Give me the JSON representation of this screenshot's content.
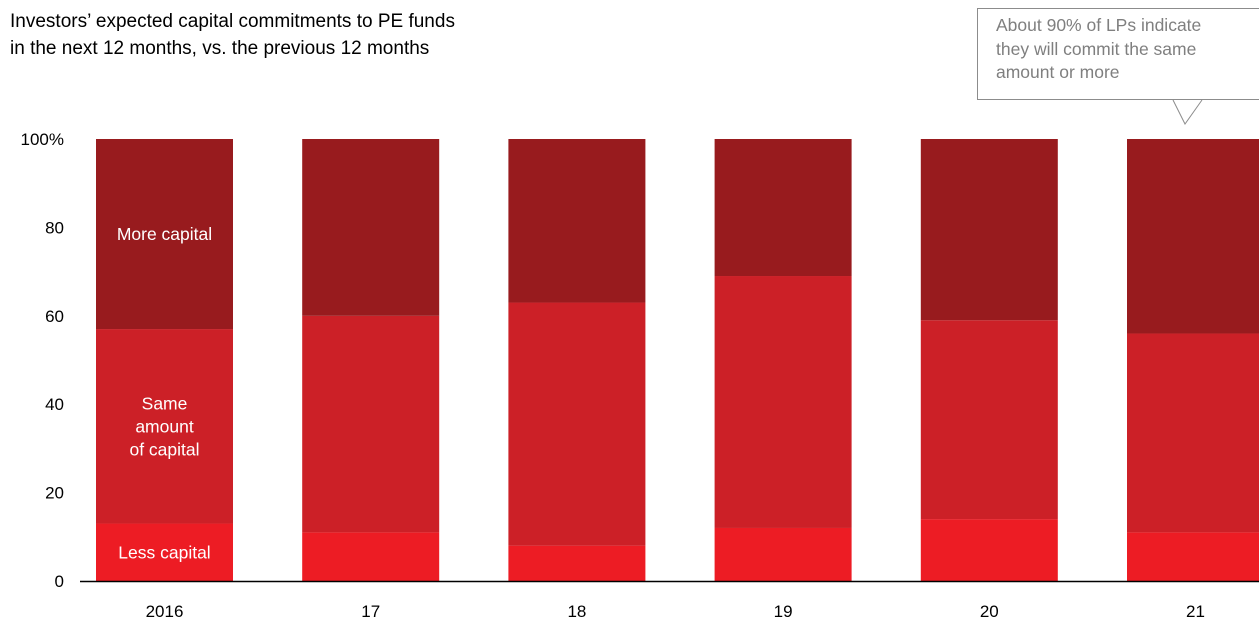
{
  "chart_data": {
    "type": "bar",
    "stacked": true,
    "title": "Investors’ expected capital commitments to PE funds",
    "subtitle": "in the next 12 months, vs. the previous 12 months",
    "annotation": [
      "About 90% of LPs indicate",
      "they will commit the same",
      "amount or more"
    ],
    "categories": [
      "2016",
      "17",
      "18",
      "19",
      "20",
      "21"
    ],
    "yticks": [
      "100%",
      "80",
      "60",
      "40",
      "20",
      "0"
    ],
    "ylim": [
      0,
      100
    ],
    "grid": false,
    "series": [
      {
        "name": "Less capital",
        "color": "#ED1C24",
        "values": [
          13,
          11,
          8,
          12,
          14,
          11
        ]
      },
      {
        "name": "Same amount of capital",
        "color": "#CC2027",
        "values": [
          44,
          49,
          55,
          57,
          45,
          45
        ]
      },
      {
        "name": "More capital",
        "color": "#981B1E",
        "values": [
          43,
          40,
          37,
          31,
          41,
          44
        ]
      }
    ],
    "segment_labels": {
      "less": [
        "Less capital"
      ],
      "same": [
        "Same",
        "amount",
        "of capital"
      ],
      "more": [
        "More capital"
      ]
    }
  }
}
